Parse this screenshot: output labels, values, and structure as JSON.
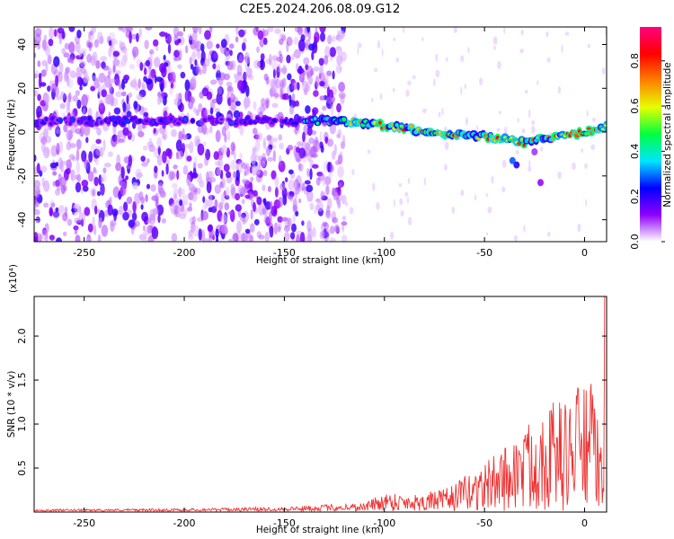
{
  "title": "C2E5.2024.206.08.09.G12",
  "chart_data": [
    {
      "type": "heatmap",
      "xlabel": "Height of straight line (km)",
      "ylabel": "Frequency (Hz)",
      "xlim": [
        -275,
        11
      ],
      "ylim": [
        -50,
        48
      ],
      "xticks": [
        -250,
        -200,
        -150,
        -100,
        -50,
        0
      ],
      "yticks": [
        -40,
        -20,
        0,
        20,
        40
      ],
      "colorbar": {
        "label": "Normalized spectral amplitude",
        "range": [
          0,
          0.95
        ],
        "ticks": [
          "0.0",
          "0.2",
          "0.4",
          "0.6",
          "0.8"
        ],
        "tick_values": [
          0,
          0.2,
          0.4,
          0.6,
          0.8
        ]
      },
      "ridge": {
        "x": [
          -275,
          -140,
          -130,
          -110,
          -90,
          -70,
          -50,
          -35,
          -30,
          -20,
          0,
          11
        ],
        "y": [
          5,
          5,
          5,
          4,
          2,
          -1,
          -2,
          -4,
          -5,
          -3,
          0,
          2
        ]
      },
      "noise_region_x": [
        -275,
        -125
      ],
      "colormap": [
        "#ffffff",
        "#8f00ff",
        "#0000ff",
        "#00e5ff",
        "#00ff40",
        "#e5ff00",
        "#ff8000",
        "#ff0000",
        "#ff0080"
      ]
    },
    {
      "type": "line",
      "xlabel": "Height of straight line (km)",
      "ylabel": "SNR (10 * v/v)",
      "multiplier": "(x10⁴)",
      "xlim": [
        -275,
        11
      ],
      "ylim": [
        0,
        2.45
      ],
      "xticks": [
        -250,
        -200,
        -150,
        -100,
        -50,
        0
      ],
      "yticks": [
        0.5,
        1.0,
        1.5,
        2.0
      ],
      "yticklabels": [
        "0.5",
        "1.0",
        "1.5",
        "2.0"
      ],
      "line_color": "#ee3333",
      "envelope": {
        "x": [
          -275,
          -200,
          -150,
          -110,
          -100,
          -85,
          -70,
          -60,
          -50,
          -40,
          -30,
          -20,
          -10,
          0,
          5,
          8,
          10
        ],
        "y": [
          0.02,
          0.03,
          0.05,
          0.1,
          0.22,
          0.2,
          0.25,
          0.4,
          0.55,
          0.75,
          0.95,
          1.3,
          1.25,
          1.55,
          1.4,
          0.7,
          2.45
        ]
      }
    }
  ]
}
